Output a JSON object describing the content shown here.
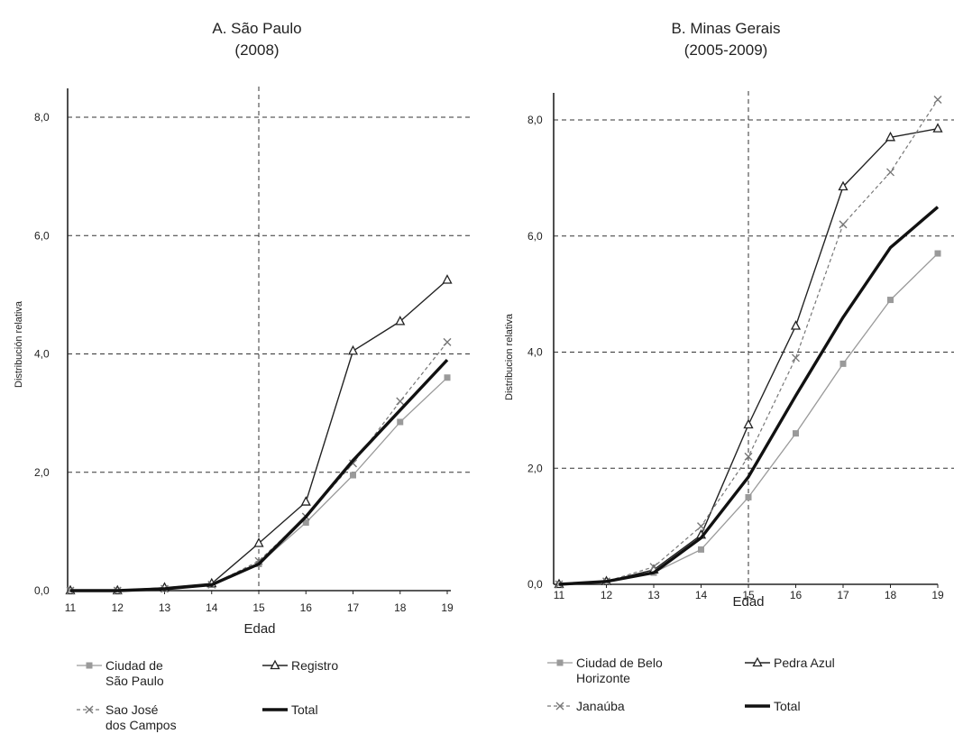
{
  "chart_data": [
    {
      "type": "line",
      "title_line1": "A. São Paulo",
      "title_line2": "(2008)",
      "xlabel": "Edad",
      "ylabel": "Distribución relativa",
      "x": [
        11,
        12,
        13,
        14,
        15,
        16,
        17,
        18,
        19
      ],
      "x_tick_labels": [
        "11",
        "12",
        "13",
        "14",
        "15",
        "16",
        "17",
        "18",
        "19"
      ],
      "y_tick_labels": [
        "0,0",
        "2,0",
        "4,0",
        "6,0",
        "8,0"
      ],
      "y_ticks": [
        0,
        2,
        4,
        6,
        8
      ],
      "ylim": [
        0,
        8.5
      ],
      "grid": "horizontal dashed at y ticks; vertical dashed at x = 15",
      "ref_x": 15,
      "legend_position": "bottom",
      "series": [
        {
          "name_lines": [
            "Ciudad de",
            "São Paulo"
          ],
          "values": [
            0.0,
            0.0,
            0.03,
            0.1,
            0.45,
            1.15,
            1.95,
            2.85,
            3.6
          ],
          "color": "#9a9a9a",
          "marker": "square",
          "style": "solid-thin"
        },
        {
          "name_lines": [
            "Registro"
          ],
          "values": [
            0.0,
            0.0,
            0.05,
            0.12,
            0.8,
            1.5,
            4.05,
            4.55,
            5.25
          ],
          "color": "#222222",
          "marker": "triangle",
          "style": "solid"
        },
        {
          "name_lines": [
            "Sao José",
            "dos Campos"
          ],
          "values": [
            0.0,
            0.0,
            0.03,
            0.1,
            0.5,
            1.25,
            2.15,
            3.2,
            4.2
          ],
          "color": "#777777",
          "marker": "x",
          "style": "dashed"
        },
        {
          "name_lines": [
            "Total"
          ],
          "values": [
            0.0,
            0.0,
            0.03,
            0.1,
            0.45,
            1.25,
            2.2,
            3.05,
            3.9
          ],
          "color": "#111111",
          "marker": "none",
          "style": "bold"
        }
      ]
    },
    {
      "type": "line",
      "title_line1": "B. Minas Gerais",
      "title_line2": "(2005-2009)",
      "xlabel": "Edad",
      "ylabel": "Distribucion relativa",
      "x": [
        11,
        12,
        13,
        14,
        15,
        16,
        17,
        18,
        19
      ],
      "x_tick_labels": [
        "11",
        "12",
        "13",
        "14",
        "15",
        "16",
        "17",
        "18",
        "19"
      ],
      "y_tick_labels": [
        "0,0",
        "2,0",
        "4,0",
        "6,0",
        "8,0"
      ],
      "y_ticks": [
        0,
        2,
        4,
        6,
        8
      ],
      "ylim": [
        0,
        8.5
      ],
      "grid": "horizontal dashed at y ticks; vertical dashed at x = 15",
      "ref_x": 15,
      "legend_position": "bottom",
      "series": [
        {
          "name_lines": [
            "Ciudad de Belo",
            "Horizonte"
          ],
          "values": [
            0.0,
            0.05,
            0.2,
            0.6,
            1.5,
            2.6,
            3.8,
            4.9,
            5.7
          ],
          "color": "#9a9a9a",
          "marker": "square",
          "style": "solid-thin"
        },
        {
          "name_lines": [
            "Pedra Azul"
          ],
          "values": [
            0.0,
            0.05,
            0.25,
            0.85,
            2.75,
            4.45,
            6.85,
            7.7,
            7.85
          ],
          "color": "#222222",
          "marker": "triangle",
          "style": "solid"
        },
        {
          "name_lines": [
            "Janaúba"
          ],
          "values": [
            0.0,
            0.05,
            0.3,
            1.0,
            2.2,
            3.9,
            6.2,
            7.1,
            8.35
          ],
          "color": "#777777",
          "marker": "x",
          "style": "dashed"
        },
        {
          "name_lines": [
            "Total"
          ],
          "values": [
            0.0,
            0.05,
            0.2,
            0.8,
            1.85,
            3.25,
            4.6,
            5.8,
            6.5
          ],
          "color": "#111111",
          "marker": "none",
          "style": "bold"
        }
      ]
    }
  ]
}
